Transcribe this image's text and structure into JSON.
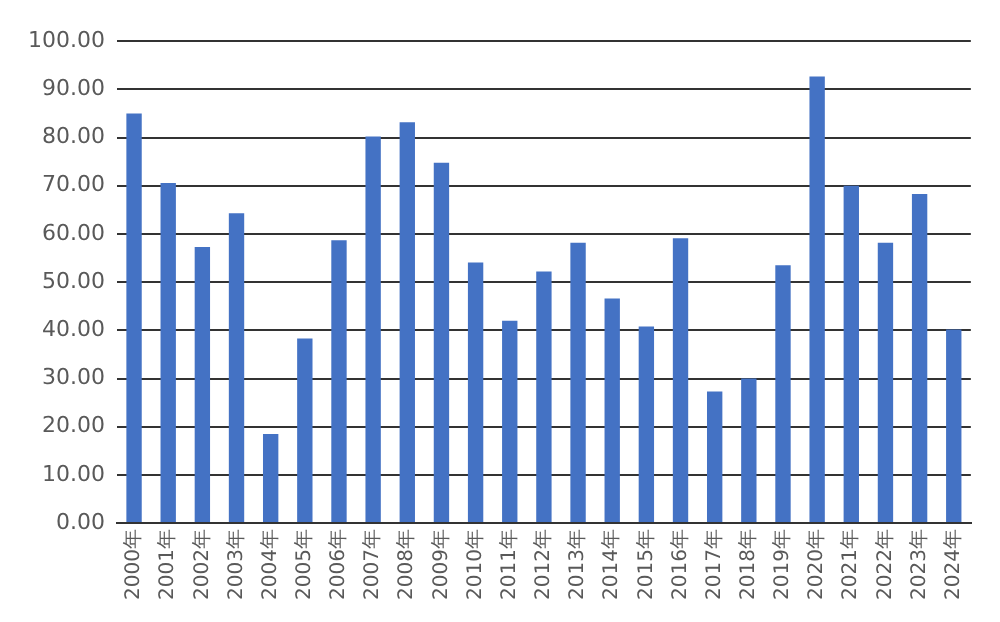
{
  "chart_data": {
    "type": "bar",
    "categories": [
      "2000年",
      "2001年",
      "2002年",
      "2003年",
      "2004年",
      "2005年",
      "2006年",
      "2007年",
      "2008年",
      "2009年",
      "2010年",
      "2011年",
      "2012年",
      "2013年",
      "2014年",
      "2015年",
      "2016年",
      "2017年",
      "2018年",
      "2019年",
      "2020年",
      "2021年",
      "2022年",
      "2023年",
      "2024年"
    ],
    "values": [
      85,
      70.6,
      57.3,
      64.3,
      18.5,
      38.3,
      58.7,
      80.2,
      83.2,
      74.8,
      54.1,
      42,
      52.2,
      58.2,
      46.6,
      40.8,
      59.1,
      27.3,
      30,
      53.5,
      92.7,
      70,
      58.2,
      68.3,
      40.2
    ],
    "color": "#4472c4",
    "ylim": [
      0,
      100
    ],
    "yticks": [
      {
        "value": 0,
        "label": "0.00"
      },
      {
        "value": 10,
        "label": "10.00"
      },
      {
        "value": 20,
        "label": "20.00"
      },
      {
        "value": 30,
        "label": "30.00"
      },
      {
        "value": 40,
        "label": "40.00"
      },
      {
        "value": 50,
        "label": "50.00"
      },
      {
        "value": 60,
        "label": "60.00"
      },
      {
        "value": 70,
        "label": "70.00"
      },
      {
        "value": 80,
        "label": "80.00"
      },
      {
        "value": 90,
        "label": "90.00"
      },
      {
        "value": 100,
        "label": "100.00"
      }
    ],
    "grid": "y"
  }
}
